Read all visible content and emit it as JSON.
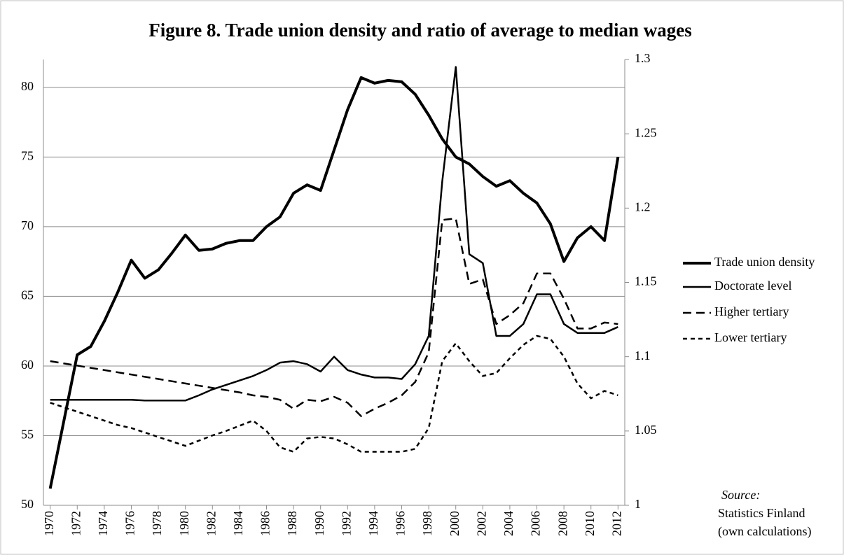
{
  "chart_data": {
    "type": "line",
    "title": "Figure 8. Trade union density and ratio of  average to median wages",
    "x": [
      1970,
      1971,
      1972,
      1973,
      1974,
      1975,
      1976,
      1977,
      1978,
      1979,
      1980,
      1981,
      1982,
      1983,
      1984,
      1985,
      1986,
      1987,
      1988,
      1989,
      1990,
      1991,
      1992,
      1993,
      1994,
      1995,
      1996,
      1997,
      1998,
      1999,
      2000,
      2001,
      2002,
      2003,
      2004,
      2005,
      2006,
      2007,
      2008,
      2009,
      2010,
      2011,
      2012
    ],
    "xlim": [
      1969.5,
      2012.5
    ],
    "xticks": [
      1970,
      1972,
      1974,
      1976,
      1978,
      1980,
      1982,
      1984,
      1986,
      1988,
      1990,
      1992,
      1994,
      1996,
      1998,
      2000,
      2002,
      2004,
      2006,
      2008,
      2010,
      2012
    ],
    "ylim": [
      50,
      82
    ],
    "yticks": [
      50,
      55,
      60,
      65,
      70,
      75,
      80
    ],
    "y2lim": [
      1,
      1.3
    ],
    "y2ticks": [
      1,
      1.05,
      1.1,
      1.15,
      1.2,
      1.25,
      1.3
    ],
    "grid": true,
    "legend": "right",
    "series": [
      {
        "name": "Trade union density",
        "color": "#000000",
        "width": 4,
        "dash": "none",
        "values": [
          51.2,
          56.0,
          60.8,
          61.4,
          63.2,
          65.3,
          67.6,
          66.3,
          66.9,
          68.1,
          69.4,
          68.3,
          68.4,
          68.8,
          69.0,
          69.0,
          70.0,
          70.7,
          72.4,
          73.0,
          72.6,
          75.5,
          78.4,
          80.7,
          80.3,
          80.5,
          80.4,
          79.5,
          78.0,
          76.3,
          75.0,
          74.5,
          73.6,
          72.9,
          73.3,
          72.4,
          71.7,
          70.2,
          67.5,
          69.2,
          70.0,
          69.0,
          75.0
        ]
      },
      {
        "name": "Doctorate level",
        "color": "#000000",
        "width": 2.5,
        "dash": "none",
        "axis": "y2",
        "values": [
          1.071,
          1.071,
          1.071,
          1.071,
          1.071,
          1.071,
          1.071,
          1.0705,
          1.0705,
          1.0705,
          1.0705,
          1.074,
          1.078,
          1.081,
          1.084,
          1.087,
          1.091,
          1.096,
          1.097,
          1.095,
          1.09,
          1.1,
          1.091,
          1.088,
          1.086,
          1.086,
          1.085,
          1.095,
          1.114,
          1.218,
          1.295,
          1.169,
          1.163,
          1.114,
          1.114,
          1.122,
          1.142,
          1.142,
          1.122,
          1.116,
          1.116,
          1.116,
          1.12
        ]
      },
      {
        "name": "Higher tertiary",
        "color": "#000000",
        "width": 2.5,
        "dash": "12,7",
        "axis": "y2",
        "values": [
          1.097,
          1.0955,
          1.094,
          1.0925,
          1.091,
          1.0895,
          1.088,
          1.0865,
          1.085,
          1.0835,
          1.082,
          1.0805,
          1.079,
          1.0775,
          1.076,
          1.074,
          1.073,
          1.071,
          1.065,
          1.071,
          1.07,
          1.073,
          1.069,
          1.06,
          1.065,
          1.069,
          1.074,
          1.083,
          1.103,
          1.192,
          1.193,
          1.149,
          1.152,
          1.122,
          1.128,
          1.136,
          1.156,
          1.156,
          1.139,
          1.119,
          1.119,
          1.123,
          1.122
        ]
      },
      {
        "name": "Lower tertiary",
        "color": "#000000",
        "width": 2.5,
        "dash": "6,5",
        "axis": "y2",
        "values": [
          1.069,
          1.066,
          1.063,
          1.06,
          1.057,
          1.054,
          1.052,
          1.049,
          1.046,
          1.043,
          1.04,
          1.0435,
          1.047,
          1.05,
          1.0535,
          1.057,
          1.05,
          1.039,
          1.036,
          1.045,
          1.046,
          1.045,
          1.041,
          1.036,
          1.036,
          1.036,
          1.036,
          1.038,
          1.052,
          1.097,
          1.109,
          1.097,
          1.087,
          1.089,
          1.099,
          1.108,
          1.114,
          1.112,
          1.1,
          1.082,
          1.072,
          1.077,
          1.074
        ]
      }
    ],
    "source": [
      "Source:",
      "Statistics Finland",
      "(own calculations)"
    ]
  }
}
